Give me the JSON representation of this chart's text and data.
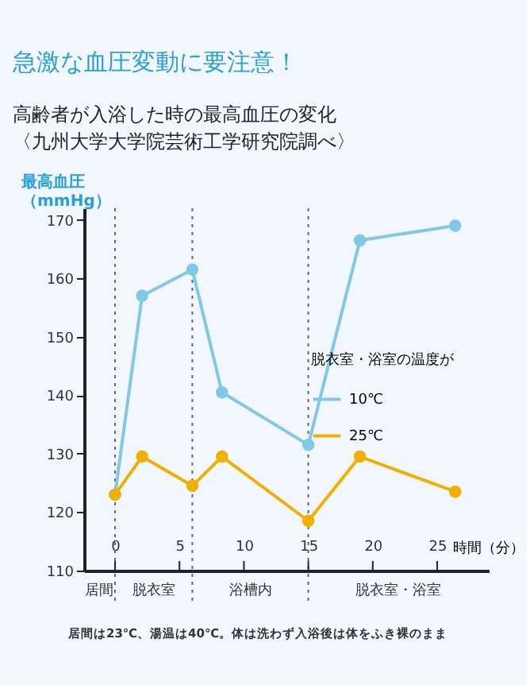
{
  "chart_data": {
    "type": "line",
    "title": "急激な血圧変動に要注意！",
    "subtitle": "高齢者が入浴した時の最高血圧の変化",
    "ylabel": "最高血圧（mmHg）",
    "xlabel": "時間（分）",
    "legend_title": "脱衣室・浴室の温度が",
    "legend": "right",
    "marker": "circle",
    "line_style": "solid",
    "grid": false,
    "x": [
      0,
      2.1,
      6.0,
      8.3,
      15.0,
      19.0,
      26.4
    ],
    "series": [
      {
        "name": "10℃",
        "color": "#80c8e8",
        "values": [
          123,
          157,
          161.5,
          140.5,
          131.5,
          166.5,
          169
        ]
      },
      {
        "name": "25℃",
        "color": "#f0b000",
        "values": [
          123,
          129.5,
          124.5,
          129.5,
          118.5,
          129.5,
          123.5
        ]
      }
    ],
    "xlim": [
      -2.4,
      29
    ],
    "xticks": [
      0,
      5,
      10,
      15,
      20,
      25
    ],
    "ylim": [
      110,
      172
    ],
    "yticks": [
      110,
      120,
      130,
      140,
      150,
      160,
      170
    ],
    "ref_lines": [
      {
        "axis": "x",
        "value": 0,
        "color": "#666666",
        "line_style": "dotted"
      },
      {
        "axis": "x",
        "value": 6,
        "color": "#666666",
        "line_style": "dotted"
      },
      {
        "axis": "x",
        "value": 15,
        "color": "#666666",
        "line_style": "dotted"
      }
    ],
    "annotations": [
      "居間",
      "脱衣室",
      "浴槽内",
      "脱衣室・浴室",
      "〈九州大学大学院芸術工学研究院調べ〉",
      "居間は23℃、湯温は40℃。体は洗わず入浴後は体をふき裸のまま"
    ]
  }
}
